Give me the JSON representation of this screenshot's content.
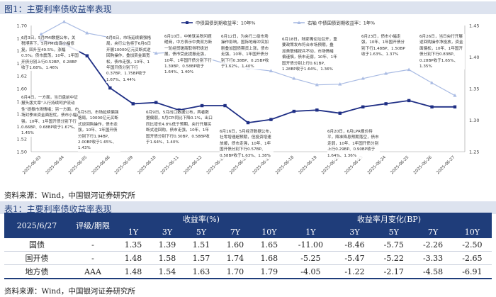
{
  "figure_title": "图1：主要利率债收益率表现",
  "figure_source": "资料来源：Wind，中国银河证券研究所",
  "table_title": "表1：主要利率债收益率表现",
  "table_source": "资料来源：Wind，中国银河证券研究所",
  "colors": {
    "cdb": "#1f2f85",
    "local": "#a9bbe3",
    "header_bg": "#1f3d7a",
    "title": "#1f3d7a"
  },
  "annotations": [
    "6月3日，5月PMI数据公布，关税博弈下，5月PMI出现小幅修复，回升至49.5%，涨幅0.5%。债市震荡，10年、1年国开债分别上行0.52BP、0.28BP收于1.68%、1.46%",
    "6月4日，一方面，当日盘前中证报头版文章“人行持续呵护流动性”提振市场情绪；另一方面，市场对季末资金面担忧，债市小幅走强。10年、1年国开债分别下行0.66BP、0.68BP收于1.67%、1.45%",
    "6月5日，市场延续偏强格局，10000亿元买断式逆回购操作，债市走强，10年、1年国开债分别下行1.94BP、2.00BP收于1.65%、1.43%",
    "6月6日，市场延续偏强格局，央行公告将于6月6日开展10000亿元买断式逆回购操作，叠加资金面宽松，债市走强，10年、1年国开债分别下行0.37BP、1.75BP收于1.67%、1.44%",
    "6月10日，中美就关税问题磋商，中方表示中美双方新一轮经贸磋商取得积极进展，债市受此提振走强，10年、1年国开债分别下行1.39BP、0.58BP收于1.64%、1.40%",
    "6月9日，5月出口数据公布，两者数据偏弱，5月CPI同比下降0.1%，出口同比增长4.8%低于预期，央行开展买断式逆回购，债市走强，10年、1年国开债分别下行0.30BP、0.58BP收于1.64%、1.40%",
    "6月12日，为央行二级市场操作影响，国际地缘冲突加剧叠加国债期货上涨，债市走强，10年、1年国开债分别下行0.38BP、0.25BP收于1.62%、1.40%",
    "6月16日，5月经济数据公布，社零增速超预期，但投资增速放缓，债市走强，10年、1年国开债分别下行0.57BP、0.58BP收于1.63%、1.38%",
    "6月18日，陆家嘴论坛召开，重要政策发布符合市场预期，叠加美联储按兵不动，市场情绪偏谨慎，债市走弱，10年、1年国开债分别上行0.61BP、1.28BP收于1.64%、1.36%",
    "6月20日，6月LPR报价持平，降准降息预期落空，债市走弱，10年、1年国开债分别上行0.29BP、0.90BP收于1.64%、1.36%",
    "6月23日，债市小幅走强，10年、1年国开债分别下行1.48BP、1.50BP收于1.63%、1.37%",
    "6月26日，当日央行开展逆回购操作净投放，资金面偏松，10年、1年国开债分别下行0.83BP、0.28BP收于1.65%、1.35%"
  ],
  "chart_data": {
    "type": "line",
    "x": [
      "2025-06-03",
      "2025-06-04",
      "2025-06-05",
      "2025-06-06",
      "2025-06-09",
      "2025-06-10",
      "2025-06-11",
      "2025-06-12",
      "2025-06-13",
      "2025-06-16",
      "2025-06-17",
      "2025-06-18",
      "2025-06-19",
      "2025-06-20",
      "2025-06-23",
      "2025-06-24",
      "2025-06-25",
      "2025-06-26",
      "2025-06-27"
    ],
    "series": [
      {
        "name": "中债国债到期收益率：10年%",
        "axis": "left",
        "values": [
          1.676,
          1.671,
          1.652,
          1.601,
          1.576,
          1.578,
          1.566,
          1.573,
          1.573,
          1.546,
          1.551,
          1.564,
          1.566,
          1.561,
          1.571,
          1.576,
          1.581,
          1.571,
          1.571
        ]
      },
      {
        "name": "右轴 中债国债到期收益率：1年%",
        "axis": "right",
        "values": [
          1.436,
          1.456,
          1.438,
          1.431,
          1.416,
          1.406,
          1.408,
          1.4,
          1.39,
          1.382,
          1.378,
          1.366,
          1.356,
          1.357,
          1.366,
          1.374,
          1.38,
          1.359,
          1.339
        ]
      }
    ],
    "y_left": {
      "min": 1.5,
      "max": 1.7,
      "ticks": [
        "1.50",
        "1.52",
        "1.54",
        "1.56",
        "1.58",
        "1.60",
        "1.62",
        "1.64",
        "1.66",
        "1.68",
        "1.70"
      ]
    },
    "y_right": {
      "min": 1.25,
      "max": 1.45,
      "ticks": [
        "1.25",
        "1.30",
        "1.35",
        "1.40",
        "1.45"
      ]
    },
    "legend": [
      "中债国债到期收益率：10年%",
      "右轴 中债国债到期收益率：1年%"
    ],
    "legend_position": "top-center"
  },
  "table": {
    "date_label": "2025/6/27",
    "rating_header": "评级/期限",
    "yield_header": "收益率(%)",
    "change_header": "收益率月变化(BP)",
    "tenors": [
      "1Y",
      "3Y",
      "5Y",
      "7Y",
      "10Y"
    ],
    "rows": [
      {
        "name": "国债",
        "rating": "-",
        "yields": [
          "1.35",
          "1.39",
          "1.51",
          "1.60",
          "1.65"
        ],
        "changes": [
          "-11.00",
          "-8.46",
          "-5.75",
          "-2.26",
          "-2.50"
        ]
      },
      {
        "name": "国开债",
        "rating": "-",
        "yields": [
          "1.48",
          "1.58",
          "1.57",
          "1.74",
          "1.68"
        ],
        "changes": [
          "-5.25",
          "-5.47",
          "-5.22",
          "-3.33",
          "-2.65"
        ]
      },
      {
        "name": "地方债",
        "rating": "AAA",
        "yields": [
          "1.48",
          "1.54",
          "1.63",
          "1.70",
          "1.79"
        ],
        "changes": [
          "-4.05",
          "-1.22",
          "-2.17",
          "-4.58",
          "-6.91"
        ]
      }
    ]
  }
}
